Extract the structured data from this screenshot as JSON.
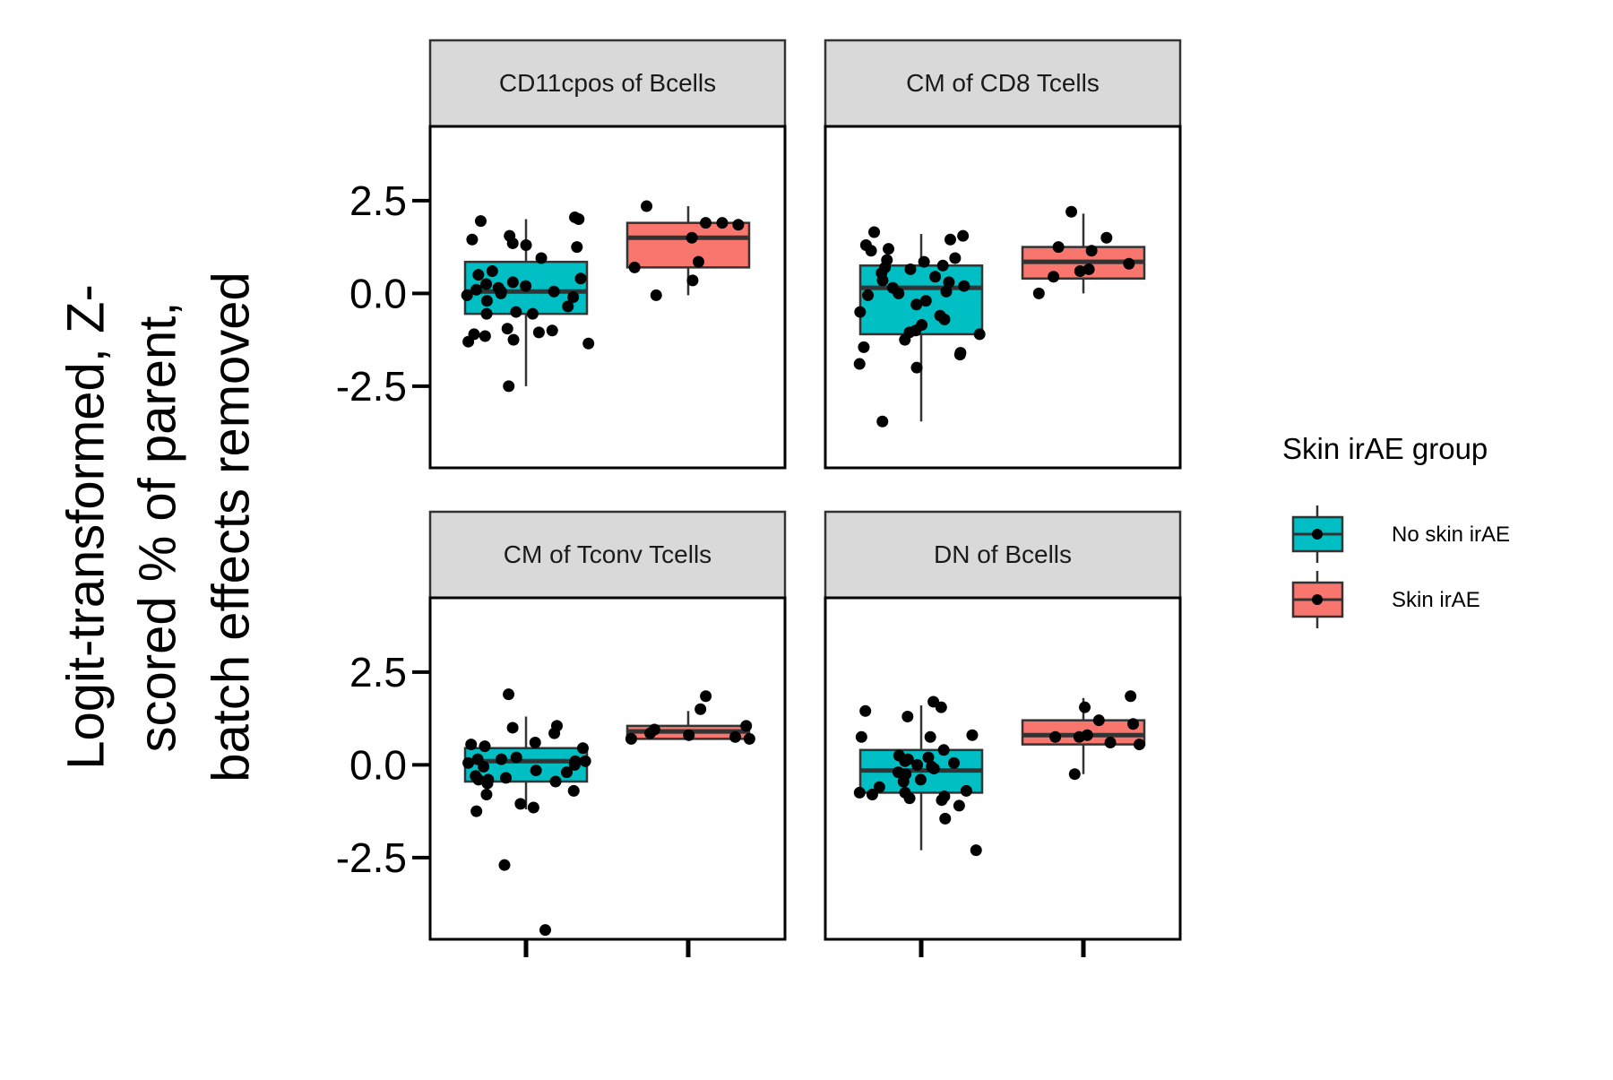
{
  "chart_data": {
    "type": "box",
    "ylabel_lines": [
      "Logit-transformed, Z-",
      "scored % of parent,",
      "batch effects removed"
    ],
    "y_ticks": [
      "2.5",
      "0.0",
      "-2.5"
    ],
    "y_tick_values": [
      2.5,
      0.0,
      -2.5
    ],
    "ylim": [
      -4.7,
      4.5
    ],
    "x_tick_labels": [
      "",
      ""
    ],
    "legend": {
      "title": "Skin irAE group",
      "position": "right",
      "entries": [
        {
          "label": "No skin irAE",
          "color": "#00BFC4"
        },
        {
          "label": "Skin irAE",
          "color": "#F8766D"
        }
      ]
    },
    "panels": [
      {
        "strip": "CD11cpos of Bcells",
        "groups": [
          {
            "group": "No skin irAE",
            "color": "#00BFC4",
            "box": {
              "whisker_low": -2.5,
              "q1": -0.55,
              "median": 0.05,
              "q3": 0.85,
              "whisker_high": 2.0
            },
            "points": [
              2.05,
              2.0,
              1.45,
              1.35,
              1.25,
              1.95,
              1.55,
              1.3,
              0.95,
              0.6,
              0.5,
              0.4,
              0.3,
              0.25,
              0.2,
              0.15,
              0.1,
              0.05,
              0.05,
              0.0,
              -0.05,
              -0.1,
              -0.2,
              -0.35,
              -0.5,
              -0.55,
              -0.55,
              -0.95,
              -1.0,
              -1.05,
              -1.1,
              -1.15,
              -1.25,
              -1.3,
              -1.35,
              -2.5
            ]
          },
          {
            "group": "Skin irAE",
            "color": "#F8766D",
            "box": {
              "whisker_low": -0.05,
              "q1": 0.7,
              "median": 1.5,
              "q3": 1.9,
              "whisker_high": 2.35
            },
            "points": [
              2.35,
              1.9,
              1.9,
              1.85,
              1.5,
              0.85,
              0.7,
              0.35,
              -0.05
            ]
          }
        ]
      },
      {
        "strip": "CM of CD8 Tcells",
        "groups": [
          {
            "group": "No skin irAE",
            "color": "#00BFC4",
            "box": {
              "whisker_low": -3.45,
              "q1": -1.1,
              "median": 0.15,
              "q3": 0.75,
              "whisker_high": 1.6
            },
            "points": [
              1.65,
              1.55,
              1.45,
              1.3,
              1.2,
              1.15,
              0.95,
              0.9,
              0.85,
              0.75,
              0.7,
              0.65,
              0.55,
              0.45,
              0.35,
              0.3,
              0.2,
              0.15,
              0.05,
              0.0,
              -0.05,
              -0.2,
              -0.3,
              -0.5,
              -0.6,
              -0.7,
              -0.85,
              -1.0,
              -1.05,
              -1.1,
              -1.25,
              -1.45,
              -1.6,
              -1.65,
              -1.9,
              -2.0,
              -3.45
            ]
          },
          {
            "group": "Skin irAE",
            "color": "#F8766D",
            "box": {
              "whisker_low": 0.0,
              "q1": 0.4,
              "median": 0.85,
              "q3": 1.25,
              "whisker_high": 2.15
            },
            "points": [
              2.2,
              1.5,
              1.25,
              1.15,
              0.8,
              0.65,
              0.6,
              0.45,
              0.0
            ]
          }
        ]
      },
      {
        "strip": "CM of Tconv Tcells",
        "groups": [
          {
            "group": "No skin irAE",
            "color": "#00BFC4",
            "box": {
              "whisker_low": -1.2,
              "q1": -0.45,
              "median": 0.1,
              "q3": 0.45,
              "whisker_high": 1.3
            },
            "points": [
              1.9,
              1.05,
              1.0,
              0.85,
              0.6,
              0.55,
              0.5,
              0.45,
              0.2,
              0.15,
              0.15,
              0.1,
              0.1,
              0.05,
              0.0,
              -0.05,
              -0.15,
              -0.2,
              -0.3,
              -0.35,
              -0.4,
              -0.4,
              -0.45,
              -0.5,
              -0.7,
              -0.8,
              -1.05,
              -1.15,
              -1.25,
              -2.7,
              -4.45
            ]
          },
          {
            "group": "Skin irAE",
            "color": "#F8766D",
            "box": {
              "whisker_low": 0.7,
              "q1": 0.7,
              "median": 0.9,
              "q3": 1.05,
              "whisker_high": 1.45
            },
            "points": [
              1.85,
              1.5,
              1.05,
              0.95,
              0.85,
              0.8,
              0.75,
              0.7,
              0.7
            ]
          }
        ]
      },
      {
        "strip": "DN of Bcells",
        "groups": [
          {
            "group": "No skin irAE",
            "color": "#00BFC4",
            "box": {
              "whisker_low": -2.3,
              "q1": -0.75,
              "median": -0.15,
              "q3": 0.4,
              "whisker_high": 1.6
            },
            "points": [
              1.7,
              1.55,
              1.45,
              1.3,
              0.8,
              0.75,
              0.75,
              0.4,
              0.25,
              0.2,
              0.15,
              0.1,
              0.05,
              0.0,
              -0.05,
              -0.1,
              -0.2,
              -0.25,
              -0.4,
              -0.45,
              -0.6,
              -0.7,
              -0.75,
              -0.75,
              -0.8,
              -0.85,
              -0.9,
              -0.95,
              -1.1,
              -1.45,
              -2.3
            ]
          },
          {
            "group": "Skin irAE",
            "color": "#F8766D",
            "box": {
              "whisker_low": -0.25,
              "q1": 0.55,
              "median": 0.8,
              "q3": 1.2,
              "whisker_high": 1.8
            },
            "points": [
              1.85,
              1.55,
              1.2,
              1.1,
              0.8,
              0.75,
              0.75,
              0.6,
              0.55,
              -0.25
            ]
          }
        ]
      }
    ]
  }
}
